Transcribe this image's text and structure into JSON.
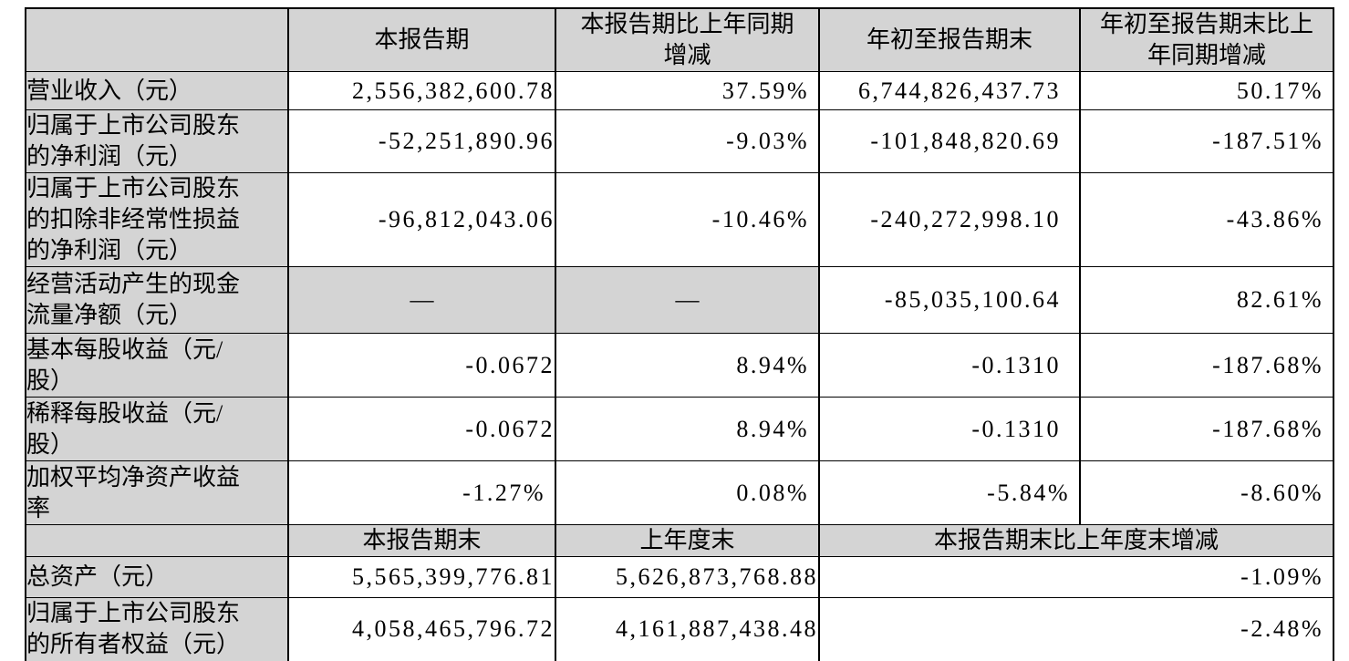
{
  "colors": {
    "shaded_cell_bg": "#d4d4d4",
    "border": "#000000",
    "text": "#000000",
    "page_bg": "#ffffff"
  },
  "table": {
    "top_header": [
      "",
      "本报告期",
      "本报告期比上年同期\n增减",
      "年初至报告期末",
      "年初至报告期末比上\n年同期增减"
    ],
    "rows": [
      {
        "label": "营业收入（元）",
        "values": [
          "2,556,382,600.78",
          "37.59%",
          "6,744,826,437.73",
          "50.17%"
        ]
      },
      {
        "label": "归属于上市公司股东\n的净利润（元）",
        "values": [
          "-52,251,890.96",
          "-9.03%",
          "-101,848,820.69",
          "-187.51%"
        ]
      },
      {
        "label": "归属于上市公司股东\n的扣除非经常性损益\n的净利润（元）",
        "values": [
          "-96,812,043.06",
          "-10.46%",
          "-240,272,998.10",
          "-43.86%"
        ]
      },
      {
        "label": "经营活动产生的现金\n流量净额（元）",
        "values": [
          "—",
          "—",
          "-85,035,100.64",
          "82.61%"
        ]
      },
      {
        "label": "基本每股收益（元/\n股）",
        "values": [
          "-0.0672",
          "8.94%",
          "-0.1310",
          "-187.68%"
        ]
      },
      {
        "label": "稀释每股收益（元/\n股）",
        "values": [
          "-0.0672",
          "8.94%",
          "-0.1310",
          "-187.68%"
        ]
      },
      {
        "label": "加权平均净资产收益\n率",
        "values": [
          "-1.27%",
          "0.08%",
          "-5.84%",
          "-8.60%"
        ]
      }
    ],
    "mid_header": [
      "",
      "本报告期末",
      "上年度末",
      "本报告期末比上年度末增减"
    ],
    "bottom_rows": [
      {
        "label": "总资产（元）",
        "values": [
          "5,565,399,776.81",
          "5,626,873,768.88",
          "-1.09%"
        ]
      },
      {
        "label": "归属于上市公司股东\n的所有者权益（元）",
        "values": [
          "4,058,465,796.72",
          "4,161,887,438.48",
          "-2.48%"
        ]
      }
    ]
  }
}
